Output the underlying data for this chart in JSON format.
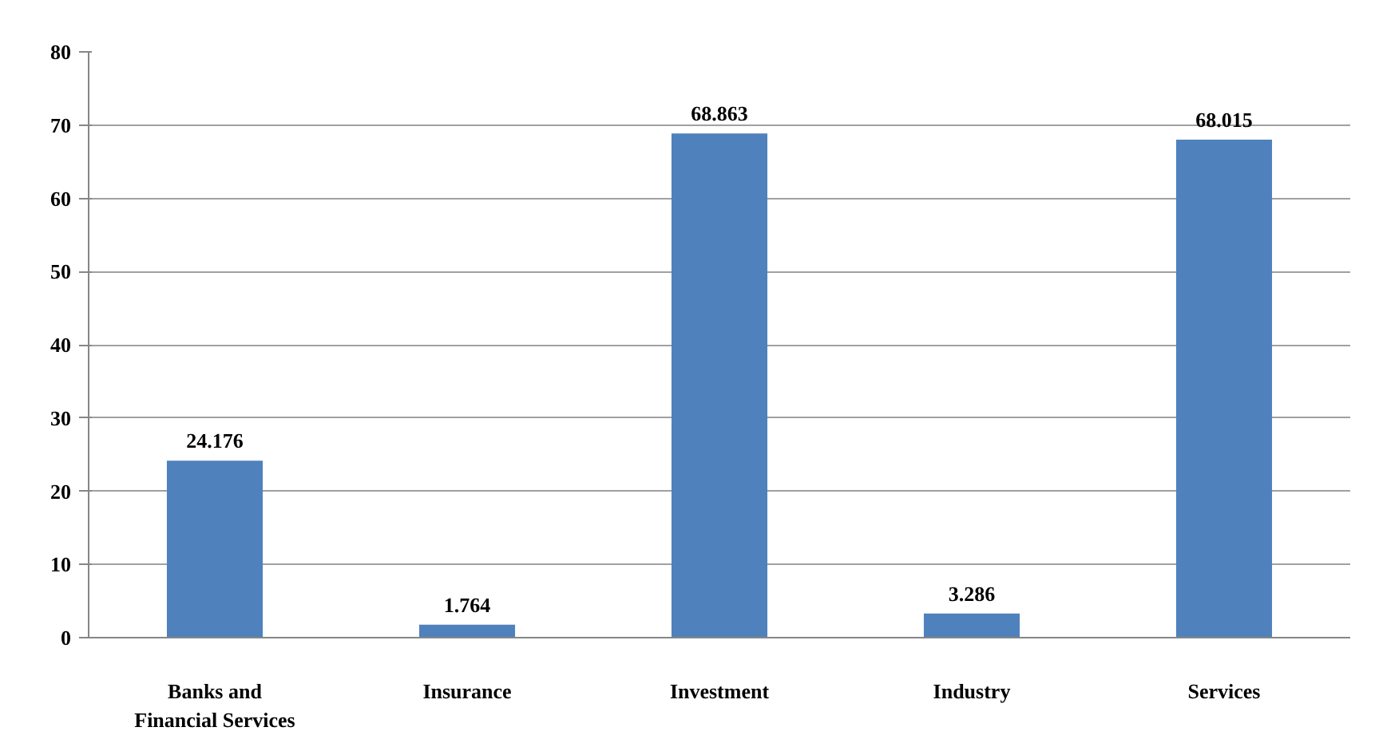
{
  "chart_data": {
    "type": "bar",
    "categories": [
      "Banks and Financial Services",
      "Insurance",
      "Investment",
      "Industry",
      "Services"
    ],
    "values": [
      24.176,
      1.764,
      68.863,
      3.286,
      68.015
    ],
    "color": "#4f81bd",
    "ylim": [
      0,
      80
    ],
    "yticks": [
      0,
      10,
      20,
      30,
      40,
      50,
      60,
      70,
      80
    ],
    "grid": "y",
    "data_labels": true
  }
}
